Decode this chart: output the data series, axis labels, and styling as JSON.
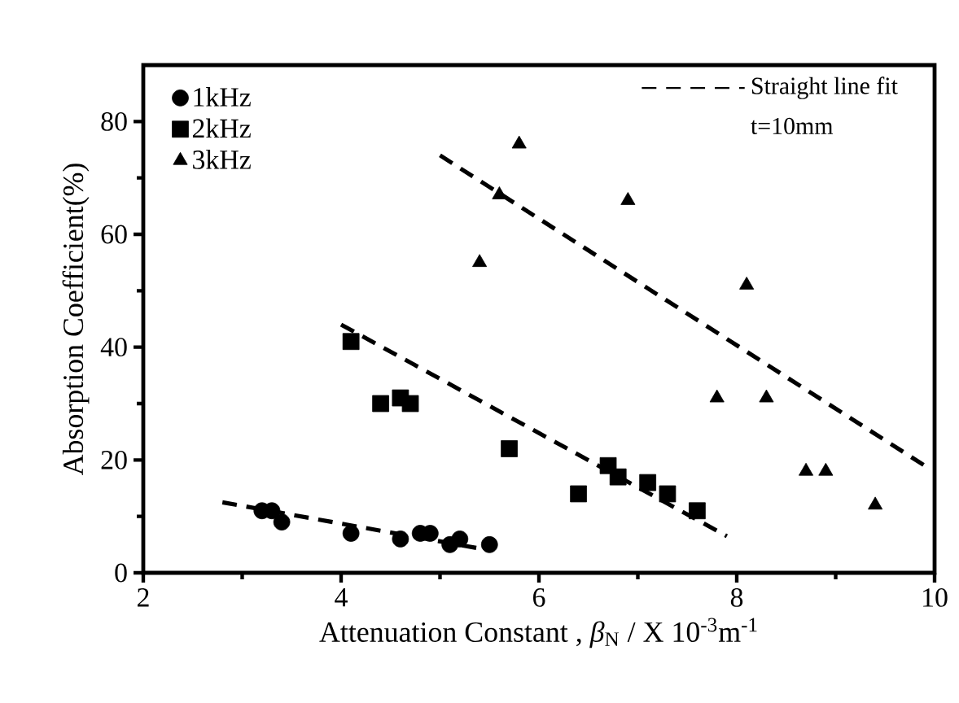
{
  "chart_data": {
    "type": "scatter",
    "xlabel": "Attenuation Constant , *β*$_{N}$ / X 10$^{-3}$m$^{-1}$",
    "ylabel": "Absorption Coefficient(%)",
    "xlim": [
      2,
      10
    ],
    "ylim": [
      0,
      90
    ],
    "xticks": [
      2,
      4,
      6,
      8,
      10
    ],
    "yticks": [
      0,
      20,
      40,
      60,
      80
    ],
    "legend": "top left",
    "grid": false,
    "annotations": [
      "t=10mm"
    ],
    "series": [
      {
        "name": "1kHz",
        "color": "#000000",
        "marker": "circle",
        "x": [
          3.2,
          3.3,
          3.4,
          4.1,
          4.6,
          4.8,
          4.9,
          5.1,
          5.2,
          5.5
        ],
        "values": [
          11,
          11,
          9,
          7,
          6,
          7,
          7,
          5,
          6,
          5
        ]
      },
      {
        "name": "2kHz",
        "color": "#000000",
        "marker": "square",
        "x": [
          4.1,
          4.4,
          4.6,
          4.7,
          5.7,
          6.4,
          6.7,
          6.8,
          7.1,
          7.3,
          7.6
        ],
        "values": [
          41,
          30,
          31,
          30,
          22,
          14,
          19,
          17,
          16,
          14,
          11
        ]
      },
      {
        "name": "3kHz",
        "color": "#000000",
        "marker": "triangle",
        "x": [
          5.4,
          5.6,
          5.8,
          6.9,
          7.8,
          8.1,
          8.3,
          8.7,
          8.9,
          9.4
        ],
        "values": [
          55,
          67,
          76,
          66,
          31,
          51,
          31,
          18,
          18,
          12
        ]
      },
      {
        "name": "Straight line fit",
        "type": "line",
        "color": "#000000",
        "marker": "none",
        "line_style": "dashed",
        "x": [
          2.8,
          5.5
        ],
        "values": [
          12.5,
          4
        ]
      },
      {
        "type": "line",
        "color": "#000000",
        "marker": "none",
        "line_style": "dashed",
        "x": [
          4.0,
          7.9
        ],
        "values": [
          44,
          6.5
        ]
      },
      {
        "type": "line",
        "color": "#000000",
        "marker": "none",
        "line_style": "dashed",
        "x": [
          5.0,
          9.9
        ],
        "values": [
          74,
          19
        ]
      }
    ]
  }
}
